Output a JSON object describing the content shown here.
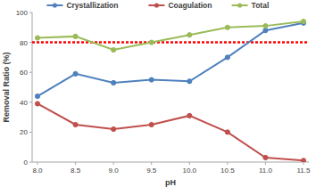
{
  "chart_data": {
    "type": "line",
    "x_label": "pH",
    "y_label": "Removal Ratio (%)",
    "categories": [
      "8.0",
      "8.5",
      "9.0",
      "9.5",
      "10.0",
      "10.5",
      "11.0",
      "11.5"
    ],
    "series": [
      {
        "name": "Crystallization",
        "color": "#4f81bd",
        "marker": "circle",
        "values": [
          44,
          59,
          53,
          55,
          54,
          70,
          88,
          93
        ]
      },
      {
        "name": "Coagulation",
        "color": "#c0504d",
        "marker": "circle",
        "values": [
          39,
          25,
          22,
          25,
          31,
          20,
          3,
          1
        ]
      },
      {
        "name": "Total",
        "color": "#9bbb59",
        "marker": "circle",
        "values": [
          83,
          84,
          75,
          80,
          85,
          90,
          91,
          94
        ]
      }
    ],
    "reference_line": {
      "value": 80,
      "color": "#ff0000",
      "line_style": "dotted"
    },
    "ylim": [
      0,
      100
    ],
    "yticks": [
      0,
      20,
      40,
      60,
      80,
      100
    ],
    "grid": false,
    "legend": "top"
  }
}
